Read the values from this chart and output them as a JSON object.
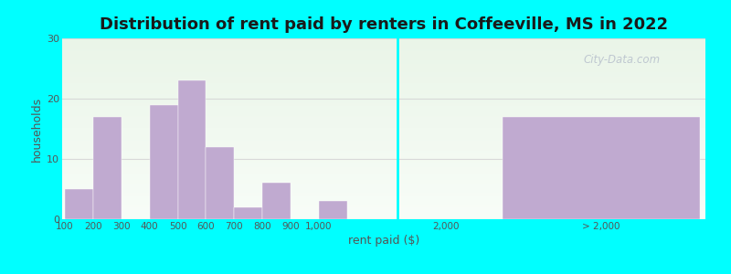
{
  "title": "Distribution of rent paid by renters in Coffeeville, MS in 2022",
  "xlabel": "rent paid ($)",
  "ylabel": "households",
  "background_color": "#00FFFF",
  "bar_color": "#c0aad0",
  "ylim": [
    0,
    30
  ],
  "yticks": [
    0,
    10,
    20,
    30
  ],
  "left_labels": [
    "100",
    "200",
    "300",
    "400",
    "500",
    "600",
    "700",
    "800",
    "900",
    "1,000"
  ],
  "left_values": [
    5,
    17,
    0,
    19,
    23,
    12,
    2,
    6,
    0,
    3
  ],
  "large_value": 17,
  "watermark": "City-Data.com",
  "title_fontsize": 13,
  "axis_label_fontsize": 9,
  "tick_fontsize": 7.5,
  "grid_color": "#e8e8e8"
}
